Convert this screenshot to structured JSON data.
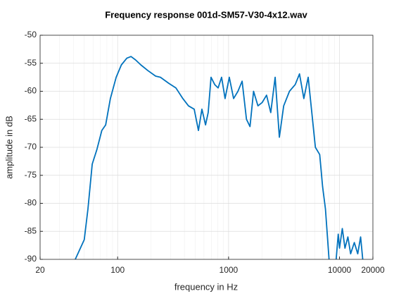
{
  "chart_data": {
    "type": "line",
    "title": "Frequency response 001d-SM57-V30-4x12.wav",
    "x_label": "frequency in Hz",
    "y_label": "amplitude in dB",
    "x_scale": "log",
    "grid": true,
    "minor_grid": true,
    "xlim": [
      20,
      20000
    ],
    "xticks": [
      20,
      100,
      1000,
      10000,
      20000
    ],
    "ylim": [
      -90,
      -50
    ],
    "yticks": [
      -90,
      -85,
      -80,
      -75,
      -70,
      -65,
      -60,
      -55,
      -50
    ],
    "x": [
      41.5,
      50,
      54,
      59,
      65,
      72,
      78,
      86,
      97,
      108,
      121,
      132,
      145,
      162,
      187,
      220,
      243,
      290,
      335,
      387,
      435,
      490,
      535,
      575,
      620,
      655,
      695,
      750,
      805,
      865,
      930,
      1015,
      1110,
      1215,
      1325,
      1450,
      1560,
      1680,
      1840,
      2010,
      2200,
      2400,
      2630,
      2870,
      3140,
      3540,
      3990,
      4360,
      4770,
      5220,
      5710,
      6060,
      6630,
      7040,
      7470,
      8050,
      8700,
      9330,
      9740,
      10000,
      10600,
      11200,
      11900,
      12600,
      13600,
      14600,
      15500,
      16200
    ],
    "series": [
      {
        "name": "amplitude",
        "color": "#0072bd",
        "values": [
          -90,
          -86.5,
          -81,
          -73,
          -70.4,
          -67,
          -66,
          -61.3,
          -57.5,
          -55.3,
          -54.1,
          -53.8,
          -54.4,
          -55.3,
          -56.3,
          -57.3,
          -57.5,
          -58.6,
          -59.4,
          -61.3,
          -62.6,
          -63.2,
          -67,
          -63.2,
          -66,
          -63.8,
          -57.5,
          -58.8,
          -59.4,
          -57.5,
          -61.3,
          -57.5,
          -61.3,
          -60,
          -58.2,
          -65,
          -66.3,
          -60,
          -62.6,
          -62,
          -60.7,
          -63.8,
          -57.5,
          -68.2,
          -62.6,
          -60,
          -58.8,
          -56.9,
          -61.3,
          -57.5,
          -65,
          -70,
          -71.3,
          -77,
          -81,
          -90,
          null,
          -90,
          -85.5,
          -88,
          -84.5,
          -88,
          -86,
          -89,
          -87,
          -89,
          -86,
          -90
        ]
      }
    ]
  }
}
